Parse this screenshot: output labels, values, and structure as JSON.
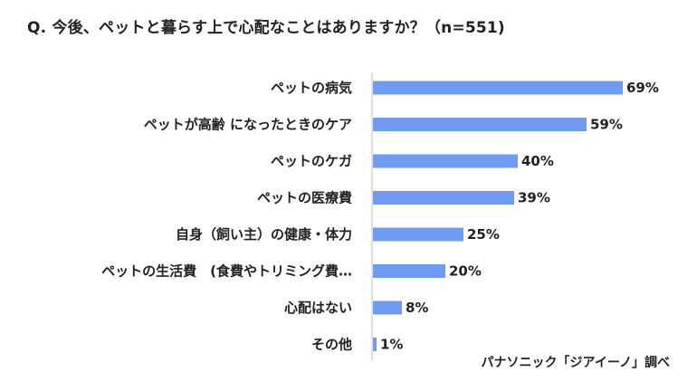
{
  "chart_data": {
    "type": "bar",
    "orientation": "horizontal",
    "title": "Q. 今後、ペットと暮らす上で心配なことはありますか？（n=551)",
    "categories": [
      "ペットの病気",
      "ペットが高齢 になったときのケア",
      "ペットのケガ",
      "ペットの医療費",
      "自身（飼い主）の健康・体力",
      "ペットの生活費　(食費やトリミング費…",
      "心配はない",
      "その他"
    ],
    "values": [
      69,
      59,
      40,
      39,
      25,
      20,
      8,
      1
    ],
    "value_labels": [
      "69%",
      "59%",
      "40%",
      "39%",
      "25%",
      "20%",
      "8%",
      "1%"
    ],
    "unit": "%",
    "xlim": [
      0,
      100
    ],
    "grid": false,
    "bar_color": "#6f9cf0",
    "source": "パナソニック「ジアイーノ」調べ"
  }
}
